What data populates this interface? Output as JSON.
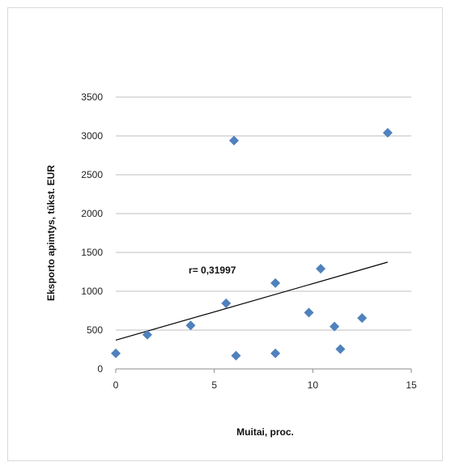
{
  "chart_data": {
    "type": "scatter",
    "title": "",
    "xlabel": "Muitai, proc.",
    "ylabel": "Eksporto apimtys, tūkst. EUR",
    "xlim": [
      0,
      15
    ],
    "ylim": [
      0,
      3500
    ],
    "xticks": [
      0,
      5,
      10,
      15
    ],
    "xtick_labels": [
      "0",
      "5",
      "10",
      "15"
    ],
    "yticks": [
      0,
      500,
      1000,
      1500,
      2000,
      2500,
      3000,
      3500
    ],
    "ytick_labels": [
      "0",
      "500",
      "1000",
      "1500",
      "2000",
      "2500",
      "3000",
      "3500"
    ],
    "grid": "horizontal",
    "legend": "none",
    "marker_color": "#4f81bd",
    "trendline_color": "#000000",
    "points": [
      {
        "x": 0,
        "y": 200
      },
      {
        "x": 1.6,
        "y": 440
      },
      {
        "x": 3.8,
        "y": 560
      },
      {
        "x": 5.6,
        "y": 845
      },
      {
        "x": 6.0,
        "y": 2940
      },
      {
        "x": 6.1,
        "y": 170
      },
      {
        "x": 8.1,
        "y": 1105
      },
      {
        "x": 8.1,
        "y": 200
      },
      {
        "x": 9.8,
        "y": 725
      },
      {
        "x": 10.4,
        "y": 1290
      },
      {
        "x": 11.1,
        "y": 545
      },
      {
        "x": 11.4,
        "y": 255
      },
      {
        "x": 12.5,
        "y": 655
      },
      {
        "x": 13.8,
        "y": 3040
      }
    ],
    "trendline": {
      "x0": 0,
      "y0": 370,
      "x1": 13.8,
      "y1": 1375
    },
    "annotation": {
      "text": "r= 0,31997",
      "x": 3.7,
      "y": 1230
    }
  }
}
